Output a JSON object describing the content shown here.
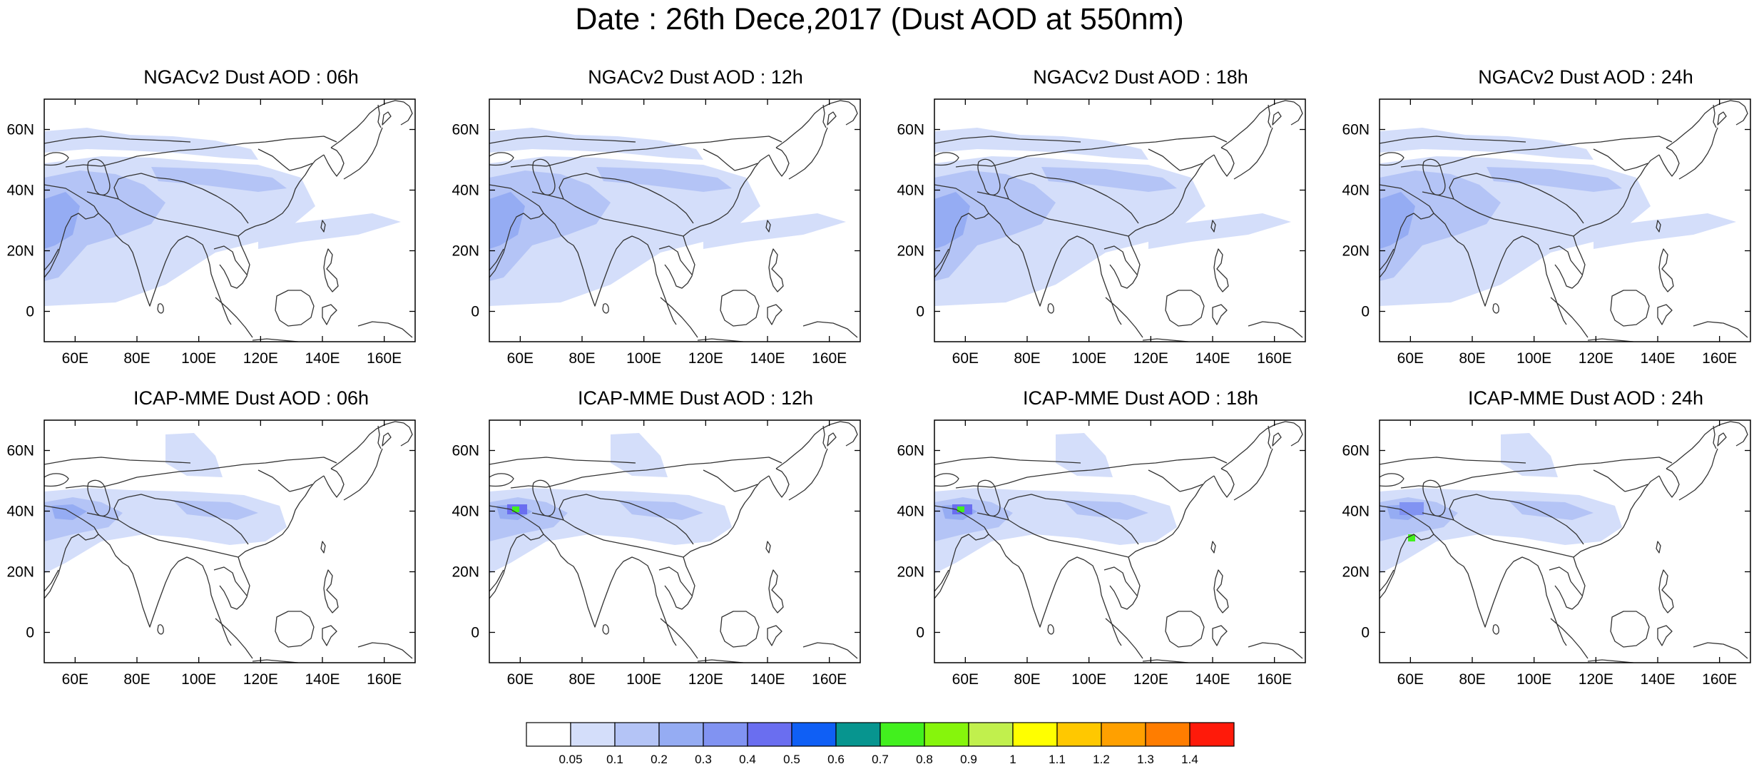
{
  "title": "Date : 26th Dece,2017 (Dust AOD at 550nm)",
  "panels": [
    {
      "title": "NGACv2 Dust AOD : 06h",
      "model": "NGACv2",
      "hour": "06h"
    },
    {
      "title": "NGACv2 Dust AOD : 12h",
      "model": "NGACv2",
      "hour": "12h"
    },
    {
      "title": "NGACv2 Dust AOD : 18h",
      "model": "NGACv2",
      "hour": "18h"
    },
    {
      "title": "NGACv2 Dust AOD : 24h",
      "model": "NGACv2",
      "hour": "24h"
    },
    {
      "title": "ICAP-MME Dust AOD : 06h",
      "model": "ICAP-MME",
      "hour": "06h"
    },
    {
      "title": "ICAP-MME Dust AOD : 12h",
      "model": "ICAP-MME",
      "hour": "12h"
    },
    {
      "title": "ICAP-MME Dust AOD : 18h",
      "model": "ICAP-MME",
      "hour": "18h"
    },
    {
      "title": "ICAP-MME Dust AOD : 24h",
      "model": "ICAP-MME",
      "hour": "24h"
    }
  ],
  "map_extent": {
    "lon_min": 50,
    "lon_max": 170,
    "lat_min": -10,
    "lat_max": 70
  },
  "lon_ticks": [
    "60E",
    "80E",
    "100E",
    "120E",
    "140E",
    "160E"
  ],
  "lon_tick_values": [
    60,
    80,
    100,
    120,
    140,
    160
  ],
  "lat_ticks": [
    "0",
    "20N",
    "40N",
    "60N"
  ],
  "lat_tick_values": [
    0,
    20,
    40,
    60
  ],
  "colorbar": {
    "levels": [
      "0.05",
      "0.1",
      "0.2",
      "0.3",
      "0.4",
      "0.5",
      "0.6",
      "0.7",
      "0.8",
      "0.9",
      "1",
      "1.1",
      "1.2",
      "1.3",
      "1.4"
    ],
    "colors": [
      "#ffffff",
      "#d4defa",
      "#b4c4f6",
      "#95acf3",
      "#8193f2",
      "#6a6ef0",
      "#0f5ff5",
      "#07958f",
      "#42f01e",
      "#86f50c",
      "#c1f04d",
      "#ffff00",
      "#ffc800",
      "#ffa000",
      "#ff7d00",
      "#ff1a0a"
    ]
  }
}
